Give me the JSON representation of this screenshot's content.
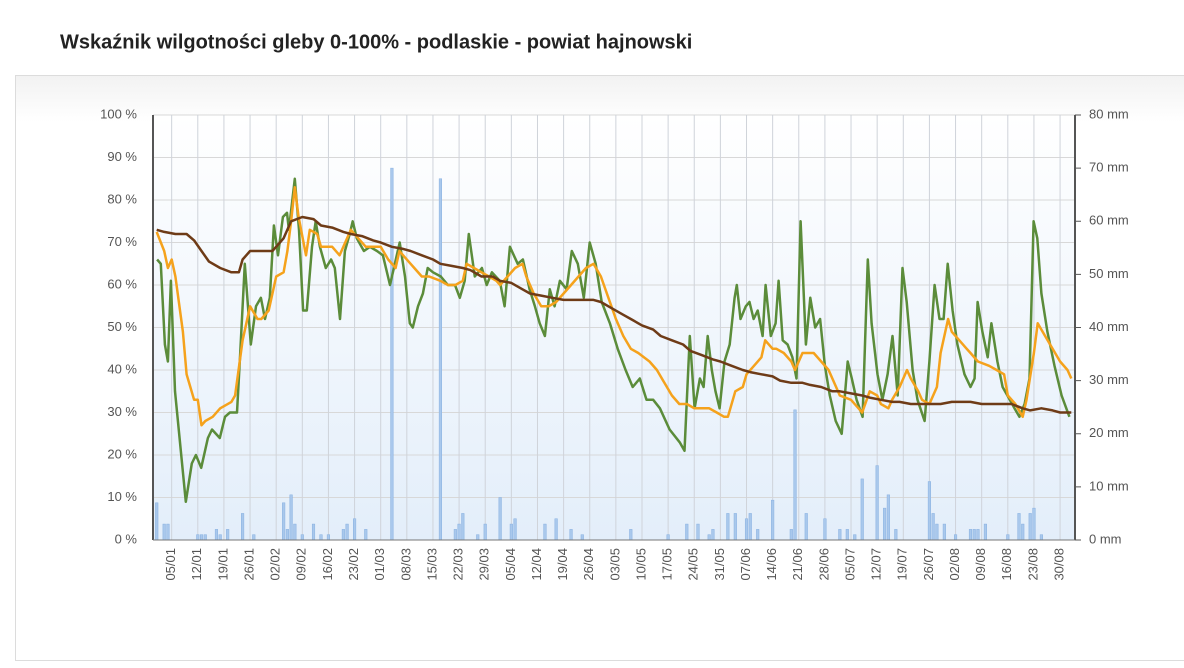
{
  "chart_data": {
    "type": "line",
    "title": "Wskaźnik wilgotności gleby 0-100% - podlaskie - powiat hajnowski",
    "xlim": [
      0,
      247
    ],
    "xticks": [
      {
        "value": 5,
        "label": "05/01"
      },
      {
        "value": 12,
        "label": "12/01"
      },
      {
        "value": 19,
        "label": "19/01"
      },
      {
        "value": 26,
        "label": "26/01"
      },
      {
        "value": 33,
        "label": "02/02"
      },
      {
        "value": 40,
        "label": "09/02"
      },
      {
        "value": 47,
        "label": "16/02"
      },
      {
        "value": 54,
        "label": "23/02"
      },
      {
        "value": 61,
        "label": "01/03"
      },
      {
        "value": 68,
        "label": "08/03"
      },
      {
        "value": 75,
        "label": "15/03"
      },
      {
        "value": 82,
        "label": "22/03"
      },
      {
        "value": 89,
        "label": "29/03"
      },
      {
        "value": 96,
        "label": "05/04"
      },
      {
        "value": 103,
        "label": "12/04"
      },
      {
        "value": 110,
        "label": "19/04"
      },
      {
        "value": 117,
        "label": "26/04"
      },
      {
        "value": 124,
        "label": "03/05"
      },
      {
        "value": 131,
        "label": "10/05"
      },
      {
        "value": 138,
        "label": "17/05"
      },
      {
        "value": 145,
        "label": "24/05"
      },
      {
        "value": 152,
        "label": "31/05"
      },
      {
        "value": 159,
        "label": "07/06"
      },
      {
        "value": 166,
        "label": "14/06"
      },
      {
        "value": 173,
        "label": "21/06"
      },
      {
        "value": 180,
        "label": "28/06"
      },
      {
        "value": 187,
        "label": "05/07"
      },
      {
        "value": 194,
        "label": "12/07"
      },
      {
        "value": 201,
        "label": "19/07"
      },
      {
        "value": 208,
        "label": "26/07"
      },
      {
        "value": 215,
        "label": "02/08"
      },
      {
        "value": 222,
        "label": "09/08"
      },
      {
        "value": 229,
        "label": "16/08"
      },
      {
        "value": 236,
        "label": "23/08"
      },
      {
        "value": 243,
        "label": "30/08"
      }
    ],
    "ylim": [
      0,
      100
    ],
    "yticks": [
      {
        "value": 0,
        "label": "0 %"
      },
      {
        "value": 10,
        "label": "10 %"
      },
      {
        "value": 20,
        "label": "20 %"
      },
      {
        "value": 30,
        "label": "30 %"
      },
      {
        "value": 40,
        "label": "40 %"
      },
      {
        "value": 50,
        "label": "50 %"
      },
      {
        "value": 60,
        "label": "60 %"
      },
      {
        "value": 70,
        "label": "70 %"
      },
      {
        "value": 80,
        "label": "80 %"
      },
      {
        "value": 90,
        "label": "90 %"
      },
      {
        "value": 100,
        "label": "100 %"
      }
    ],
    "y2lim": [
      0,
      80
    ],
    "y2ticks": [
      {
        "value": 0,
        "label": "0 mm"
      },
      {
        "value": 10,
        "label": "10 mm"
      },
      {
        "value": 20,
        "label": "20 mm"
      },
      {
        "value": 30,
        "label": "30 mm"
      },
      {
        "value": 40,
        "label": "40 mm"
      },
      {
        "value": 50,
        "label": "50 mm"
      },
      {
        "value": 60,
        "label": "60 mm"
      },
      {
        "value": 70,
        "label": "70 mm"
      },
      {
        "value": 80,
        "label": "80 mm"
      }
    ],
    "grid": true,
    "series": [
      {
        "type": "bar",
        "axis": "y2",
        "color": "#a9c8ec",
        "x": [
          1,
          3,
          4,
          12,
          13,
          14,
          17,
          18,
          20,
          24,
          27,
          35,
          36,
          37,
          38,
          40,
          43,
          45,
          47,
          51,
          52,
          54,
          57,
          64,
          77,
          81,
          82,
          83,
          87,
          89,
          93,
          96,
          97,
          105,
          108,
          112,
          115,
          128,
          138,
          143,
          146,
          149,
          150,
          154,
          156,
          159,
          160,
          162,
          166,
          171,
          172,
          175,
          180,
          184,
          186,
          188,
          190,
          194,
          196,
          197,
          199,
          208,
          209,
          210,
          212,
          215,
          219,
          220,
          221,
          223,
          229,
          232,
          233,
          235,
          236,
          238
        ],
        "values": [
          7,
          3,
          3,
          1,
          1,
          1,
          2,
          1,
          2,
          5,
          1,
          7,
          2,
          8.5,
          3,
          1,
          3,
          1,
          1,
          2,
          3,
          4,
          2,
          70,
          68,
          2,
          3,
          5,
          1,
          3,
          8,
          3,
          4,
          3,
          4,
          2,
          1,
          2,
          1,
          3,
          3,
          1,
          2,
          5,
          5,
          4,
          5,
          2,
          7.5,
          2,
          24.5,
          5,
          4,
          2,
          2,
          1,
          11.5,
          14,
          6,
          8.5,
          2,
          11,
          5,
          3,
          3,
          1,
          2,
          2,
          2,
          3,
          1,
          5,
          3,
          5,
          6,
          1
        ]
      },
      {
        "type": "line",
        "color": "#5b8c3a",
        "x": [
          1.1,
          2.1,
          3.2,
          4,
          4.8,
          5.9,
          8.8,
          10.4,
          11.5,
          12.9,
          14.7,
          15.8,
          17.9,
          19.3,
          20.6,
          22.5,
          23.3,
          24.6,
          26.2,
          27.6,
          28.9,
          30,
          31.3,
          32.4,
          33.5,
          34.8,
          35.9,
          36.4,
          38,
          39.1,
          40.2,
          41.2,
          42.6,
          43.6,
          44.7,
          46.3,
          47.7,
          48.7,
          50.1,
          51.4,
          52.7,
          53.5,
          54.6,
          56.5,
          58.1,
          60,
          61.6,
          63.5,
          66.1,
          67.5,
          68.8,
          69.6,
          71,
          72.3,
          73.6,
          75,
          77.1,
          79,
          80.9,
          82.2,
          83.5,
          84.6,
          86.2,
          88.1,
          89.4,
          90.8,
          92.9,
          94.2,
          95.6,
          97.7,
          99.1,
          100.9,
          102.3,
          103.6,
          105,
          106.3,
          107.6,
          109,
          110.8,
          112.2,
          113.8,
          115.4,
          117,
          118.6,
          120.2,
          122.4,
          124.5,
          126.6,
          128.5,
          130.4,
          132.2,
          134,
          135.8,
          138.4,
          141.1,
          142.4,
          143.8,
          145.1,
          146.5,
          147.5,
          148.6,
          149.7,
          150.7,
          151.8,
          153.1,
          154.5,
          155.8,
          156.4,
          157.4,
          158.8,
          159.8,
          160.9,
          162,
          163.3,
          164.1,
          165.5,
          166.8,
          167.6,
          168.7,
          170,
          171.3,
          172.4,
          173.5,
          174.9,
          176.1,
          177.4,
          178.7,
          180,
          181.3,
          182.9,
          184.5,
          186.1,
          187.2,
          188.5,
          190.1,
          191.5,
          192.5,
          194.1,
          195.4,
          196.8,
          198.1,
          199.5,
          200.8,
          201.9,
          203.5,
          204.8,
          206.7,
          208,
          209.4,
          210.7,
          211.8,
          212.9,
          214.2,
          215.5,
          217.4,
          219,
          220.1,
          220.9,
          222.2,
          223.6,
          224.6,
          226.2,
          227.6,
          228.9,
          230.8,
          232.1,
          233.5,
          234.8,
          235.9,
          236.9,
          238,
          239.6,
          241.5,
          243.4,
          245.5
        ],
        "values": [
          66,
          65,
          46,
          42,
          61,
          35,
          9,
          18,
          20,
          17,
          24,
          26,
          24,
          29,
          30,
          30,
          43,
          65,
          46,
          55,
          57,
          52,
          57,
          74,
          67,
          76,
          77,
          73,
          85,
          73,
          54,
          54,
          69,
          75,
          69,
          64,
          66,
          64,
          52,
          68,
          72,
          75,
          71,
          68,
          69,
          68,
          67,
          60,
          70,
          62,
          51,
          50,
          55,
          58,
          64,
          63,
          62,
          60,
          60,
          57,
          61,
          72,
          62,
          64,
          60,
          63,
          61,
          55,
          69,
          65,
          66,
          59,
          55,
          51,
          48,
          59,
          55,
          61,
          59,
          68,
          65,
          57,
          70,
          65,
          56,
          51,
          45,
          40,
          36,
          38,
          33,
          33,
          31,
          26,
          23,
          21,
          48,
          31,
          38,
          36,
          48,
          40,
          35,
          31,
          42,
          46,
          57,
          60,
          52,
          55,
          56,
          52,
          54,
          48,
          60,
          48,
          51,
          61,
          47,
          46,
          43,
          38,
          75,
          46,
          57,
          50,
          52,
          41,
          34,
          28,
          25,
          42,
          38,
          33,
          29,
          66,
          51,
          39,
          33,
          39,
          48,
          34,
          64,
          56,
          40,
          33,
          28,
          42,
          60,
          52,
          52,
          65,
          54,
          46,
          39,
          36,
          38,
          56,
          49,
          43,
          51,
          42,
          36,
          34,
          31,
          29,
          32,
          38,
          75,
          71,
          58,
          49,
          41,
          34,
          29
        ]
      },
      {
        "type": "line",
        "color": "#f5a21c",
        "x": [
          1,
          3,
          4,
          5,
          6,
          8,
          9,
          11,
          12,
          13,
          14,
          16,
          18,
          21,
          22,
          24,
          26,
          28,
          29,
          31,
          33,
          35,
          36,
          37,
          38,
          39,
          41,
          42,
          44,
          45,
          47,
          48,
          50,
          52,
          53,
          55,
          57,
          59,
          61,
          63,
          65,
          66,
          67,
          69,
          70,
          72,
          74,
          77,
          79,
          81,
          83,
          84,
          86,
          88,
          90,
          92,
          93,
          95,
          97,
          99,
          100,
          102,
          104,
          106,
          108,
          110,
          112,
          114,
          116,
          118,
          120,
          122,
          124,
          126,
          128,
          130,
          133,
          135,
          137,
          139,
          141,
          143,
          145,
          147,
          149,
          151,
          153,
          154,
          156,
          158,
          159,
          161,
          163,
          164,
          166,
          167,
          169,
          171,
          172,
          174,
          175,
          177,
          179,
          181,
          183,
          184,
          187,
          189,
          190,
          192,
          194,
          195,
          197,
          198,
          200,
          202,
          203,
          205,
          206,
          208,
          210,
          211,
          213,
          214,
          216,
          218,
          219,
          221,
          224,
          226,
          228,
          229,
          231,
          233,
          234,
          236,
          237,
          239,
          241,
          243,
          245,
          246
        ],
        "values": [
          72.5,
          68,
          64,
          66,
          62,
          49,
          39,
          33,
          33,
          27,
          28,
          29,
          31,
          32.5,
          34,
          47,
          55,
          52,
          52,
          54,
          62,
          63,
          68,
          75,
          83,
          76,
          67,
          73,
          72,
          69,
          69,
          69,
          67,
          71,
          73,
          71,
          69,
          69,
          69,
          66,
          64,
          68,
          67,
          65,
          64,
          62,
          62,
          61,
          60,
          60,
          61,
          65,
          64,
          63,
          62,
          61,
          60,
          62,
          64,
          65,
          62,
          58,
          55,
          55,
          56,
          58,
          60,
          62,
          64,
          65,
          62,
          57,
          52,
          48,
          45,
          44,
          42,
          40,
          37,
          34,
          32,
          32,
          31,
          31,
          31,
          30,
          29,
          29,
          35,
          36,
          39,
          41,
          43,
          47,
          45,
          45,
          44,
          42,
          40,
          44,
          44,
          44,
          42,
          40,
          36,
          34,
          33,
          31,
          30,
          35,
          34,
          32,
          31,
          33,
          36,
          40,
          38,
          35,
          33,
          32,
          36,
          44,
          52,
          49,
          47,
          45,
          44,
          42,
          41,
          40,
          39,
          34,
          32,
          29,
          33,
          44,
          51,
          48,
          45,
          42,
          40,
          38
        ]
      },
      {
        "type": "line",
        "color": "#6e3b17",
        "x": [
          1,
          3,
          6,
          9,
          11,
          13,
          15,
          18,
          21,
          23,
          24,
          26,
          29,
          32,
          35,
          37,
          40,
          43,
          45,
          48,
          51,
          53,
          56,
          59,
          61,
          64,
          67,
          69,
          72,
          75,
          77,
          80,
          83,
          85,
          88,
          91,
          93,
          96,
          99,
          101,
          104,
          107,
          110,
          112,
          115,
          118,
          120,
          123,
          126,
          128,
          131,
          134,
          136,
          139,
          142,
          144,
          147,
          150,
          152,
          155,
          158,
          160,
          163,
          166,
          168,
          171,
          174,
          176,
          179,
          182,
          184,
          187,
          190,
          192,
          195,
          198,
          200,
          203,
          206,
          209,
          211,
          214,
          217,
          219,
          222,
          225,
          227,
          230,
          233,
          235,
          238,
          241,
          243,
          246
        ],
        "values": [
          73,
          72.5,
          72,
          72,
          70.5,
          68,
          65.5,
          64,
          63,
          63,
          66,
          68,
          68,
          68,
          71,
          75,
          76,
          75.5,
          74,
          73.5,
          72.5,
          72,
          71.5,
          70.5,
          70,
          69,
          68.5,
          68,
          67,
          66,
          65,
          64.5,
          64,
          63.5,
          62,
          62,
          61,
          60.5,
          59,
          58,
          57.5,
          57,
          56.5,
          56.5,
          56.5,
          56.5,
          56,
          54.5,
          53,
          52,
          50.5,
          49.5,
          48,
          47,
          46,
          44.5,
          43.5,
          42.5,
          42,
          41,
          40,
          39.5,
          39,
          38.5,
          37.5,
          37,
          37,
          36.5,
          36,
          35,
          35,
          34.5,
          34,
          33.5,
          33,
          32.5,
          32.5,
          32,
          32,
          32,
          32,
          32.5,
          32.5,
          32.5,
          32,
          32,
          32,
          32,
          31,
          30.5,
          31,
          30.5,
          30,
          30
        ]
      }
    ]
  }
}
